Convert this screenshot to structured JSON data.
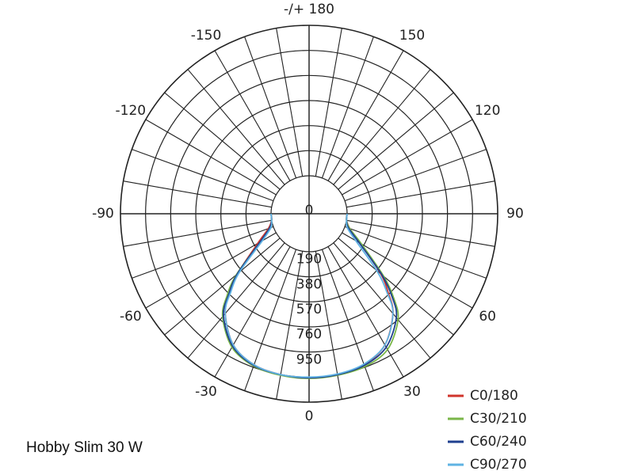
{
  "caption": "Hobby Slim 30 W",
  "chart_data": {
    "type": "polar",
    "angle_labels": [
      {
        "angle": 180,
        "text": "-/+ 180"
      },
      {
        "angle": 150,
        "text": "150"
      },
      {
        "angle": -150,
        "text": "-150"
      },
      {
        "angle": 120,
        "text": "120"
      },
      {
        "angle": -120,
        "text": "-120"
      },
      {
        "angle": 90,
        "text": "90"
      },
      {
        "angle": -90,
        "text": "-90"
      },
      {
        "angle": 60,
        "text": "60"
      },
      {
        "angle": -60,
        "text": "-60"
      },
      {
        "angle": 30,
        "text": "30"
      },
      {
        "angle": -30,
        "text": "-30"
      },
      {
        "angle": 0,
        "text": "0"
      }
    ],
    "radial_ticks": [
      0,
      190,
      380,
      570,
      760,
      950
    ],
    "r_max": 1140,
    "angle_step": 10,
    "series": [
      {
        "name": "C0/180",
        "color": "#d0342c",
        "angles": [
          -90,
          -80,
          -70,
          -60,
          -50,
          -45,
          -40,
          -30,
          -20,
          -10,
          0,
          10,
          20,
          30,
          40,
          45,
          50,
          60,
          70,
          80,
          90
        ],
        "values": [
          0,
          0,
          40,
          160,
          420,
          560,
          700,
          860,
          930,
          950,
          955,
          950,
          930,
          860,
          700,
          560,
          420,
          160,
          40,
          0,
          0
        ]
      },
      {
        "name": "C30/210",
        "color": "#7ab648",
        "angles": [
          -90,
          -80,
          -70,
          -60,
          -50,
          -45,
          -40,
          -30,
          -20,
          -10,
          0,
          10,
          20,
          30,
          40,
          45,
          50,
          60,
          70,
          80,
          90
        ],
        "values": [
          0,
          0,
          30,
          140,
          430,
          590,
          730,
          880,
          940,
          955,
          960,
          955,
          945,
          900,
          760,
          620,
          450,
          170,
          40,
          0,
          0
        ]
      },
      {
        "name": "C60/240",
        "color": "#1f3f8f",
        "angles": [
          -90,
          -80,
          -70,
          -60,
          -50,
          -45,
          -40,
          -30,
          -20,
          -10,
          0,
          10,
          20,
          30,
          40,
          45,
          50,
          60,
          70,
          80,
          90
        ],
        "values": [
          0,
          0,
          30,
          140,
          420,
          570,
          720,
          870,
          935,
          950,
          955,
          950,
          935,
          880,
          740,
          600,
          430,
          150,
          30,
          0,
          0
        ]
      },
      {
        "name": "C90/270",
        "color": "#5fb3e3",
        "angles": [
          -90,
          -80,
          -70,
          -60,
          -50,
          -45,
          -40,
          -30,
          -20,
          -10,
          0,
          10,
          20,
          30,
          40,
          45,
          50,
          60,
          70,
          80,
          90
        ],
        "values": [
          0,
          0,
          20,
          120,
          400,
          550,
          700,
          860,
          930,
          950,
          950,
          945,
          925,
          860,
          700,
          540,
          380,
          120,
          20,
          0,
          0
        ]
      }
    ]
  }
}
